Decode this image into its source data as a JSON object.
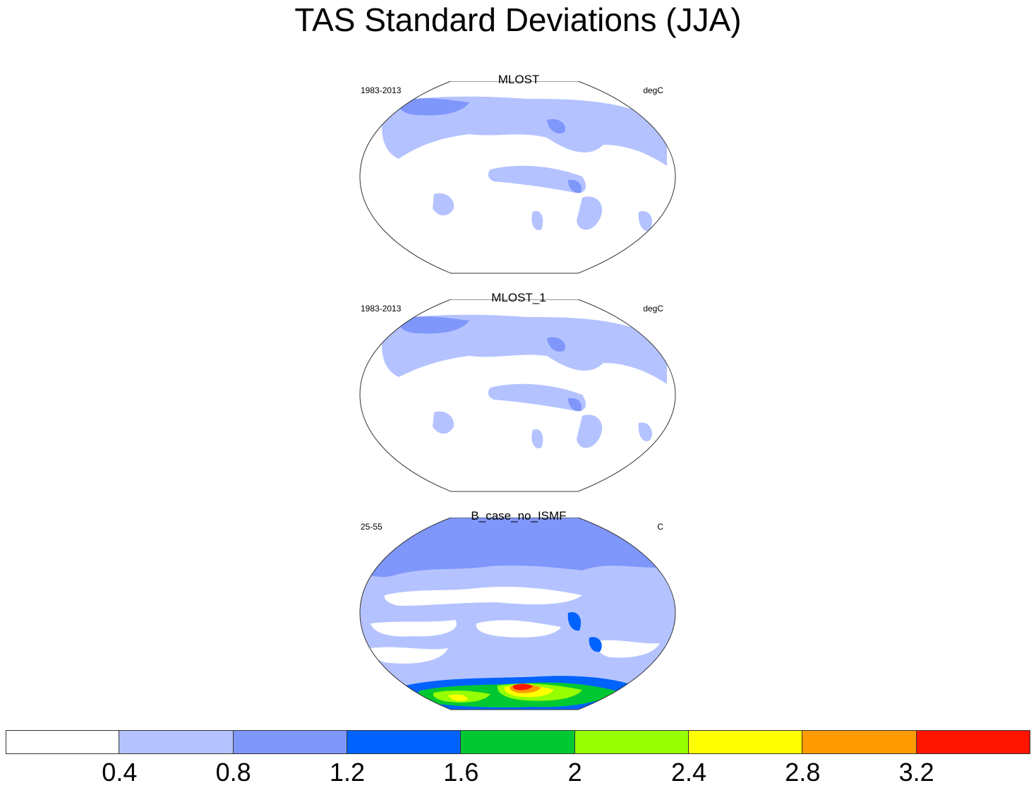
{
  "title": "TAS Standard Deviations (JJA)",
  "panels": [
    {
      "name": "MLOST",
      "left_label": "1983-2013",
      "right_label": "degC"
    },
    {
      "name": "MLOST_1",
      "left_label": "1983-2013",
      "right_label": "degC"
    },
    {
      "name": "B_case_no_ISMF",
      "left_label": "25-55",
      "right_label": "C"
    }
  ],
  "colorbar": {
    "colors": [
      "#ffffff",
      "#b4c3ff",
      "#7f96fb",
      "#0062ff",
      "#00c832",
      "#96ff00",
      "#ffff00",
      "#ff9b00",
      "#ff1400"
    ],
    "labels": [
      "0.4",
      "0.8",
      "1.2",
      "1.6",
      "2",
      "2.4",
      "2.8",
      "3.2"
    ]
  }
}
